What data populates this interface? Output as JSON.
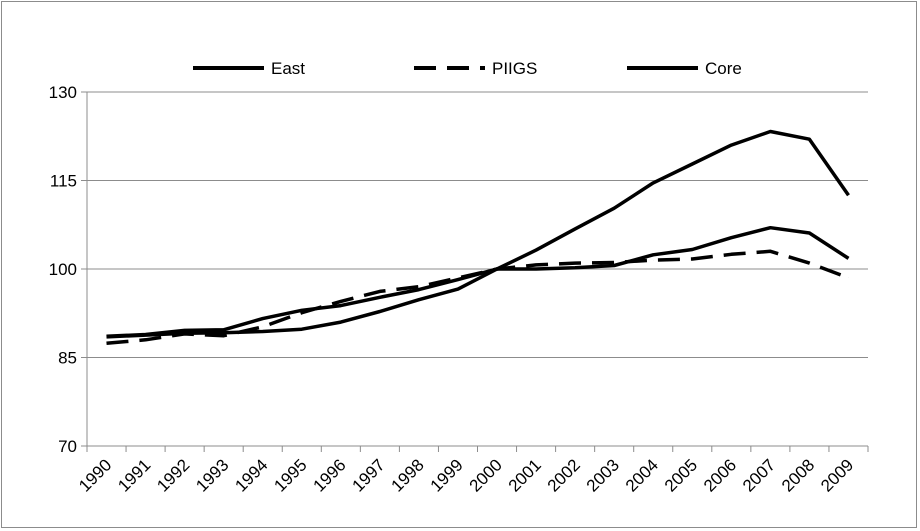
{
  "chart_data": {
    "type": "line",
    "title": "",
    "xlabel": "",
    "ylabel": "",
    "categories": [
      "1990",
      "1991",
      "1992",
      "1993",
      "1994",
      "1995",
      "1996",
      "1997",
      "1998",
      "1999",
      "2000",
      "2001",
      "2002",
      "2003",
      "2004",
      "2005",
      "2006",
      "2007",
      "2008",
      "2009"
    ],
    "ylim": [
      70,
      130
    ],
    "yticks": [
      "70",
      "85",
      "100",
      "115",
      "130"
    ],
    "grid": "horizontal",
    "legend_position": "top",
    "series": [
      {
        "name": "East",
        "style": "solid",
        "color": "#000000",
        "values": [
          88.5,
          88.8,
          89.1,
          89.2,
          89.4,
          89.8,
          91.0,
          92.8,
          94.8,
          96.6,
          100.0,
          103.2,
          106.8,
          110.3,
          114.6,
          117.8,
          121.0,
          123.3,
          122.0,
          112.5
        ]
      },
      {
        "name": "PIIGS",
        "style": "dashed",
        "color": "#000000",
        "values": [
          87.4,
          88.0,
          89.0,
          88.7,
          90.2,
          92.6,
          94.5,
          96.2,
          97.0,
          98.5,
          100.0,
          100.7,
          101.0,
          101.1,
          101.5,
          101.7,
          102.5,
          103.0,
          101.0,
          98.5
        ]
      },
      {
        "name": "Core",
        "style": "solid",
        "color": "#000000",
        "values": [
          88.6,
          88.9,
          89.6,
          89.7,
          91.6,
          93.0,
          93.8,
          95.2,
          96.5,
          98.2,
          100.0,
          100.0,
          100.2,
          100.6,
          102.4,
          103.3,
          105.3,
          107.0,
          106.1,
          101.8
        ]
      }
    ]
  }
}
